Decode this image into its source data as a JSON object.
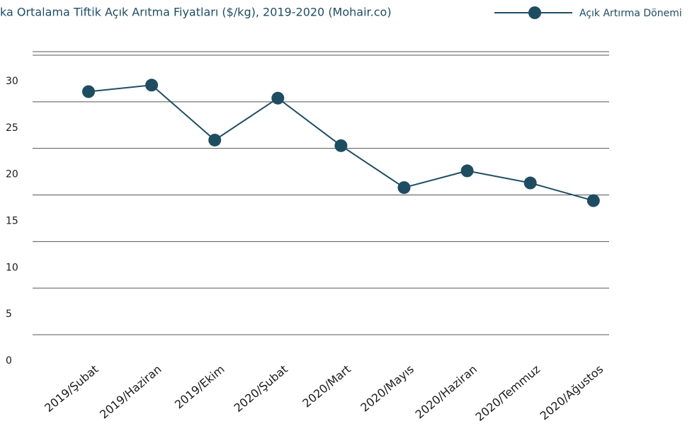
{
  "chart_data": {
    "type": "line",
    "title": "ka Ortalama Tiftik Açık Arıtma Fiyatları ($/kg), 2019-2020 (Mohair.co)",
    "categories": [
      "2019/Şubat",
      "2019/Haziran",
      "2019/Ekim",
      "2020/Şubat",
      "2020/Mart",
      "2020/Mayıs",
      "2020/Haziran",
      "2020/Temmuz",
      "2020/Ağustos"
    ],
    "series": [
      {
        "name": "Açık Artırma Dönemi",
        "color": "#1e4d62",
        "values": [
          28.9,
          29.6,
          23.7,
          28.2,
          23.1,
          18.6,
          20.4,
          19.1,
          17.2
        ]
      }
    ],
    "ylim": [
      0,
      30
    ],
    "yticks": [
      0,
      5,
      10,
      15,
      20,
      25,
      30
    ],
    "grid": true,
    "legend": "top-right"
  }
}
